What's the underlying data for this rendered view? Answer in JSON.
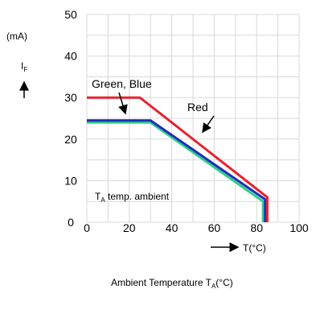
{
  "chart_data": {
    "type": "line",
    "xlabel": "Ambient Temperature T",
    "xlabel_sub": "A",
    "xlabel_unit": "(°C)",
    "x_axis_arrow_label": "T(°C)",
    "ylabel_unit": "(mA)",
    "ylabel_symbol": "I",
    "ylabel_symbol_sub": "F",
    "xlim": [
      0,
      100
    ],
    "ylim": [
      0,
      50
    ],
    "x_ticks": [
      "0",
      "20",
      "40",
      "60",
      "80",
      "100"
    ],
    "y_ticks": [
      "0",
      "10",
      "20",
      "30",
      "40",
      "50"
    ],
    "grid": true,
    "annotations": {
      "green_blue": "Green, Blue",
      "red": "Red",
      "ambient_prefix": "T",
      "ambient_sub": "A",
      "ambient_suffix": " temp. ambient"
    },
    "series": [
      {
        "name": "Red",
        "color": "#e8222e",
        "x": [
          0,
          25,
          85,
          85
        ],
        "y": [
          30,
          30,
          6,
          0
        ]
      },
      {
        "name": "Green",
        "color": "#2ecc8a",
        "x": [
          0,
          30,
          83,
          83
        ],
        "y": [
          24,
          24,
          5,
          0
        ]
      },
      {
        "name": "Blue",
        "color": "#1f2fb8",
        "x": [
          0,
          30,
          84,
          84
        ],
        "y": [
          24.5,
          24.5,
          5.5,
          0
        ]
      }
    ]
  }
}
